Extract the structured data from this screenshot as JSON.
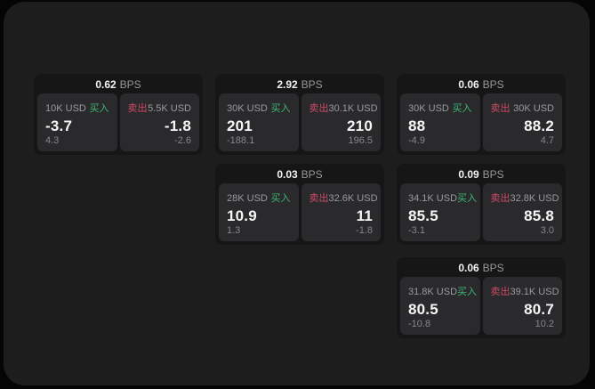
{
  "labels": {
    "bps_suffix": "BPS",
    "buy": "买入",
    "sell": "卖出"
  },
  "colors": {
    "buy_green": "#3eb575",
    "sell_red": "#cd4a66",
    "window_bg": "#1d1d1e",
    "card_bg": "#161617",
    "tile_bg": "#2a2a2c",
    "page_bg": "#050505"
  },
  "cards": [
    {
      "row": 0,
      "col": 0,
      "bps": "0.62",
      "buy": {
        "amount": "10K USD",
        "price": "-3.7",
        "delta": "4.3"
      },
      "sell": {
        "amount": "5.5K USD",
        "price": "-1.8",
        "delta": "-2.6"
      }
    },
    {
      "row": 0,
      "col": 1,
      "bps": "2.92",
      "buy": {
        "amount": "30K USD",
        "price": "201",
        "delta": "-188.1"
      },
      "sell": {
        "amount": "30.1K USD",
        "price": "210",
        "delta": "196.5"
      }
    },
    {
      "row": 0,
      "col": 2,
      "bps": "0.06",
      "buy": {
        "amount": "30K USD",
        "price": "88",
        "delta": "-4.9"
      },
      "sell": {
        "amount": "30K USD",
        "price": "88.2",
        "delta": "4.7"
      }
    },
    {
      "row": 1,
      "col": 1,
      "bps": "0.03",
      "buy": {
        "amount": "28K USD",
        "price": "10.9",
        "delta": "1.3"
      },
      "sell": {
        "amount": "32.6K USD",
        "price": "11",
        "delta": "-1.8"
      }
    },
    {
      "row": 1,
      "col": 2,
      "bps": "0.09",
      "buy": {
        "amount": "34.1K USD",
        "price": "85.5",
        "delta": "-3.1"
      },
      "sell": {
        "amount": "32.8K USD",
        "price": "85.8",
        "delta": "3.0"
      }
    },
    {
      "row": 2,
      "col": 2,
      "bps": "0.06",
      "buy": {
        "amount": "31.8K USD",
        "price": "80.5",
        "delta": "-10.8"
      },
      "sell": {
        "amount": "39.1K USD",
        "price": "80.7",
        "delta": "10.2"
      }
    }
  ]
}
